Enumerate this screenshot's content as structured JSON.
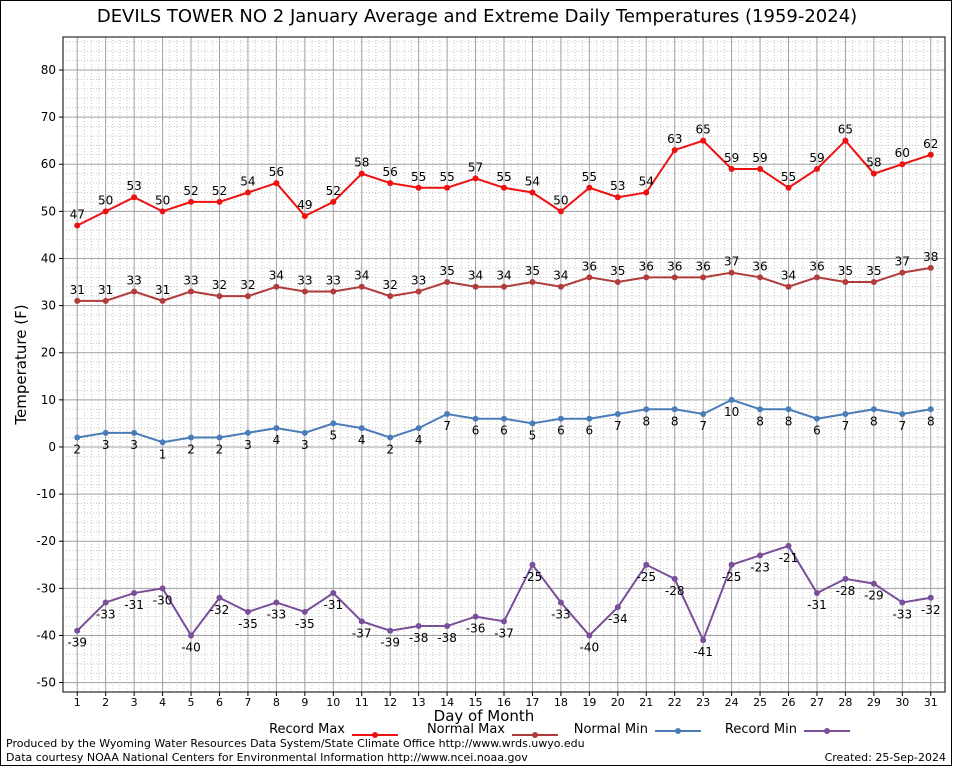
{
  "chart_data": {
    "type": "line",
    "title": "DEVILS TOWER NO 2 January Average and Extreme Daily Temperatures (1959-2024)",
    "xlabel": "Day of Month",
    "ylabel": "Temperature (F)",
    "x": [
      1,
      2,
      3,
      4,
      5,
      6,
      7,
      8,
      9,
      10,
      11,
      12,
      13,
      14,
      15,
      16,
      17,
      18,
      19,
      20,
      21,
      22,
      23,
      24,
      25,
      26,
      27,
      28,
      29,
      30,
      31
    ],
    "ylim": [
      -50,
      85
    ],
    "yticks": [
      -50,
      -40,
      -30,
      -20,
      -10,
      0,
      10,
      20,
      30,
      40,
      50,
      60,
      70,
      80
    ],
    "grid": true,
    "legend_position": "bottom",
    "series": [
      {
        "name": "Record Max",
        "color": "#ee1111",
        "label_position": "above",
        "values": [
          47,
          50,
          53,
          50,
          52,
          52,
          54,
          56,
          49,
          52,
          58,
          56,
          55,
          55,
          57,
          55,
          54,
          50,
          55,
          53,
          54,
          63,
          65,
          59,
          59,
          55,
          59,
          65,
          58,
          60,
          62
        ]
      },
      {
        "name": "Normal Max",
        "color": "#b03c3c",
        "label_position": "above",
        "values": [
          31,
          31,
          33,
          31,
          33,
          32,
          32,
          34,
          33,
          33,
          34,
          32,
          33,
          35,
          34,
          34,
          35,
          34,
          36,
          35,
          36,
          36,
          36,
          37,
          36,
          34,
          36,
          35,
          35,
          37,
          38
        ]
      },
      {
        "name": "Normal Min",
        "color": "#4a7db8",
        "label_position": "below",
        "values": [
          2,
          3,
          3,
          1,
          2,
          2,
          3,
          4,
          3,
          5,
          4,
          2,
          4,
          7,
          6,
          6,
          5,
          6,
          6,
          7,
          8,
          8,
          7,
          10,
          8,
          8,
          6,
          7,
          8,
          7,
          8
        ]
      },
      {
        "name": "Record Min",
        "color": "#7a4f9a",
        "label_position": "below",
        "values": [
          -39,
          -33,
          -31,
          -30,
          -40,
          -32,
          -35,
          -33,
          -35,
          -31,
          -37,
          -39,
          -38,
          -38,
          -36,
          -37,
          -25,
          -33,
          -40,
          -34,
          -25,
          -28,
          -41,
          -25,
          -23,
          -21,
          -31,
          -28,
          -29,
          -33,
          -32
        ]
      }
    ]
  },
  "footer": {
    "line1": "Produced by the Wyoming Water Resources Data System/State Climate Office http://www.wrds.uwyo.edu",
    "line2": "Data courtesy NOAA National Centers for Environmental Information http://www.ncei.noaa.gov",
    "created": "Created:  25-Sep-2024"
  }
}
